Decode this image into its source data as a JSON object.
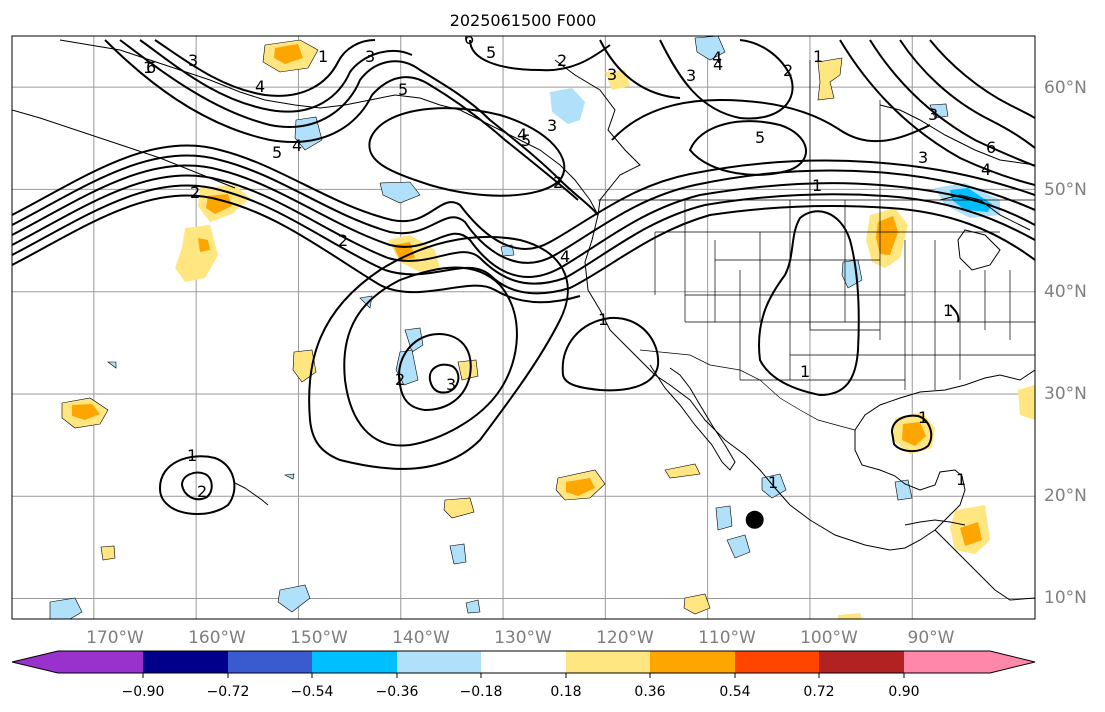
{
  "title": "2025061500 F000",
  "map": {
    "lon_labels": [
      "170°W",
      "160°W",
      "150°W",
      "140°W",
      "130°W",
      "120°W",
      "110°W",
      "100°W",
      "90°W"
    ],
    "lat_labels": [
      "60°N",
      "50°N",
      "40°N",
      "30°N",
      "20°N",
      "10°N"
    ],
    "lon_range": [
      -178,
      -78
    ],
    "lat_range": [
      8,
      65
    ],
    "grid": true,
    "marker": {
      "name": "black-dot",
      "lon": -105.4,
      "lat": 17.7,
      "color": "#000000"
    },
    "contour_color": "#000000",
    "contour_labels": [
      "1",
      "2",
      "3",
      "4",
      "5",
      "6",
      "1",
      "2",
      "3",
      "4",
      "5",
      "6",
      "1",
      "2",
      "3",
      "4",
      "5",
      "6",
      "5",
      "4",
      "3",
      "2",
      "1",
      "2",
      "3",
      "4",
      "1",
      "2",
      "3",
      "1",
      "2",
      "4",
      "3",
      "5",
      "3",
      "4",
      "1",
      "1",
      "1",
      "1",
      "1",
      "1"
    ]
  },
  "colorbar": {
    "tick_labels": [
      "−0.90",
      "−0.72",
      "−0.54",
      "−0.36",
      "−0.18",
      "0.18",
      "0.36",
      "0.54",
      "0.72",
      "0.90"
    ],
    "colors": [
      "#9932cc",
      "#00008b",
      "#3a5bcf",
      "#00bfff",
      "#b0e0fa",
      "#ffffff",
      "#ffe680",
      "#ffa500",
      "#ff4500",
      "#b22222",
      "#ff88aa"
    ],
    "extend": "both"
  }
}
